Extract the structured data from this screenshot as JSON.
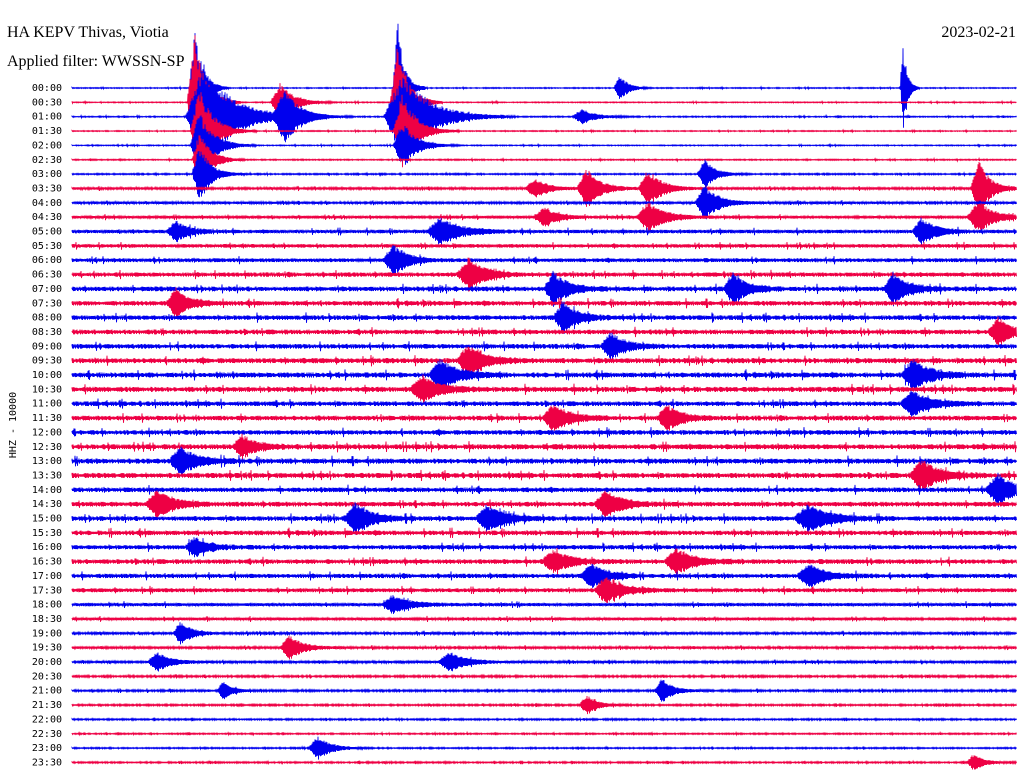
{
  "station_title": "HA KEPV Thivas, Viotia",
  "filter_label": "Applied filter: WWSSN-SP",
  "date": "2023-02-21",
  "channel_label": "HHZ - 10000",
  "colors": {
    "blue": "#0000ee",
    "red": "#ee0044",
    "text": "#000000"
  },
  "chart_data": {
    "type": "line",
    "rows": [
      "00:00",
      "00:30",
      "01:00",
      "01:30",
      "02:00",
      "02:30",
      "03:00",
      "03:30",
      "04:00",
      "04:30",
      "05:00",
      "05:30",
      "06:00",
      "06:30",
      "07:00",
      "07:30",
      "08:00",
      "08:30",
      "09:00",
      "09:30",
      "10:00",
      "10:30",
      "11:00",
      "11:30",
      "12:00",
      "12:30",
      "13:00",
      "13:30",
      "14:00",
      "14:30",
      "15:00",
      "15:30",
      "16:00",
      "16:30",
      "17:00",
      "17:30",
      "18:00",
      "18:30",
      "19:00",
      "19:30",
      "20:00",
      "20:30",
      "21:00",
      "21:30",
      "22:00",
      "22:30",
      "23:00",
      "23:30"
    ],
    "row_noise": [
      0.5,
      0.5,
      0.6,
      0.5,
      0.5,
      0.6,
      0.7,
      1.2,
      1.2,
      1.4,
      1.8,
      1.8,
      2.0,
      2.2,
      2.4,
      2.4,
      2.4,
      2.4,
      2.4,
      2.6,
      2.6,
      2.6,
      2.4,
      2.4,
      2.4,
      2.6,
      2.6,
      2.6,
      2.4,
      2.4,
      2.4,
      2.4,
      2.2,
      2.4,
      2.2,
      2.0,
      1.6,
      1.4,
      1.2,
      1.2,
      1.2,
      1.0,
      1.0,
      0.9,
      0.8,
      0.7,
      0.7,
      0.8
    ],
    "events": [
      {
        "row": 0,
        "x": 0.58,
        "amp": 14,
        "w": 0.006
      },
      {
        "row": 0,
        "x": 0.88,
        "amp": 50,
        "w": 0.003
      },
      {
        "row": 0,
        "x": 0.13,
        "amp": 60,
        "w": 0.006
      },
      {
        "row": 0,
        "x": 0.345,
        "amp": 70,
        "w": 0.005
      },
      {
        "row": 1,
        "x": 0.13,
        "amp": 70,
        "w": 0.008
      },
      {
        "row": 1,
        "x": 0.345,
        "amp": 60,
        "w": 0.008
      },
      {
        "row": 1,
        "x": 0.22,
        "amp": 20,
        "w": 0.01
      },
      {
        "row": 2,
        "x": 0.14,
        "amp": 55,
        "w": 0.02
      },
      {
        "row": 2,
        "x": 0.35,
        "amp": 45,
        "w": 0.02
      },
      {
        "row": 2,
        "x": 0.225,
        "amp": 25,
        "w": 0.012
      },
      {
        "row": 2,
        "x": 0.54,
        "amp": 8,
        "w": 0.01
      },
      {
        "row": 3,
        "x": 0.135,
        "amp": 45,
        "w": 0.01
      },
      {
        "row": 3,
        "x": 0.35,
        "amp": 40,
        "w": 0.01
      },
      {
        "row": 4,
        "x": 0.135,
        "amp": 35,
        "w": 0.01
      },
      {
        "row": 4,
        "x": 0.35,
        "amp": 25,
        "w": 0.01
      },
      {
        "row": 5,
        "x": 0.135,
        "amp": 30,
        "w": 0.008
      },
      {
        "row": 6,
        "x": 0.135,
        "amp": 30,
        "w": 0.008
      },
      {
        "row": 6,
        "x": 0.67,
        "amp": 15,
        "w": 0.008
      },
      {
        "row": 7,
        "x": 0.545,
        "amp": 20,
        "w": 0.01
      },
      {
        "row": 7,
        "x": 0.61,
        "amp": 20,
        "w": 0.01
      },
      {
        "row": 7,
        "x": 0.49,
        "amp": 10,
        "w": 0.01
      },
      {
        "row": 7,
        "x": 0.96,
        "amp": 30,
        "w": 0.008
      },
      {
        "row": 8,
        "x": 0.67,
        "amp": 18,
        "w": 0.01
      },
      {
        "row": 9,
        "x": 0.61,
        "amp": 16,
        "w": 0.012
      },
      {
        "row": 9,
        "x": 0.5,
        "amp": 10,
        "w": 0.01
      },
      {
        "row": 9,
        "x": 0.96,
        "amp": 16,
        "w": 0.012
      },
      {
        "row": 10,
        "x": 0.39,
        "amp": 14,
        "w": 0.015
      },
      {
        "row": 10,
        "x": 0.9,
        "amp": 14,
        "w": 0.01
      },
      {
        "row": 10,
        "x": 0.11,
        "amp": 10,
        "w": 0.01
      },
      {
        "row": 12,
        "x": 0.34,
        "amp": 16,
        "w": 0.01
      },
      {
        "row": 13,
        "x": 0.42,
        "amp": 16,
        "w": 0.012
      },
      {
        "row": 14,
        "x": 0.51,
        "amp": 18,
        "w": 0.01
      },
      {
        "row": 14,
        "x": 0.7,
        "amp": 16,
        "w": 0.01
      },
      {
        "row": 14,
        "x": 0.87,
        "amp": 16,
        "w": 0.01
      },
      {
        "row": 15,
        "x": 0.11,
        "amp": 14,
        "w": 0.01
      },
      {
        "row": 16,
        "x": 0.52,
        "amp": 16,
        "w": 0.01
      },
      {
        "row": 17,
        "x": 0.98,
        "amp": 14,
        "w": 0.01
      },
      {
        "row": 18,
        "x": 0.57,
        "amp": 14,
        "w": 0.01
      },
      {
        "row": 19,
        "x": 0.42,
        "amp": 16,
        "w": 0.012
      },
      {
        "row": 20,
        "x": 0.39,
        "amp": 16,
        "w": 0.012
      },
      {
        "row": 20,
        "x": 0.89,
        "amp": 16,
        "w": 0.012
      },
      {
        "row": 21,
        "x": 0.37,
        "amp": 14,
        "w": 0.012
      },
      {
        "row": 22,
        "x": 0.89,
        "amp": 14,
        "w": 0.012
      },
      {
        "row": 23,
        "x": 0.51,
        "amp": 14,
        "w": 0.012
      },
      {
        "row": 23,
        "x": 0.63,
        "amp": 14,
        "w": 0.01
      },
      {
        "row": 25,
        "x": 0.18,
        "amp": 12,
        "w": 0.01
      },
      {
        "row": 26,
        "x": 0.115,
        "amp": 14,
        "w": 0.012
      },
      {
        "row": 27,
        "x": 0.9,
        "amp": 16,
        "w": 0.012
      },
      {
        "row": 28,
        "x": 0.98,
        "amp": 16,
        "w": 0.012
      },
      {
        "row": 29,
        "x": 0.09,
        "amp": 14,
        "w": 0.012
      },
      {
        "row": 29,
        "x": 0.565,
        "amp": 14,
        "w": 0.012
      },
      {
        "row": 30,
        "x": 0.3,
        "amp": 16,
        "w": 0.012
      },
      {
        "row": 30,
        "x": 0.44,
        "amp": 14,
        "w": 0.012
      },
      {
        "row": 30,
        "x": 0.78,
        "amp": 14,
        "w": 0.015
      },
      {
        "row": 32,
        "x": 0.13,
        "amp": 10,
        "w": 0.01
      },
      {
        "row": 33,
        "x": 0.51,
        "amp": 12,
        "w": 0.012
      },
      {
        "row": 33,
        "x": 0.64,
        "amp": 14,
        "w": 0.012
      },
      {
        "row": 34,
        "x": 0.55,
        "amp": 12,
        "w": 0.012
      },
      {
        "row": 34,
        "x": 0.78,
        "amp": 12,
        "w": 0.012
      },
      {
        "row": 35,
        "x": 0.565,
        "amp": 14,
        "w": 0.012
      },
      {
        "row": 36,
        "x": 0.34,
        "amp": 10,
        "w": 0.012
      },
      {
        "row": 38,
        "x": 0.115,
        "amp": 12,
        "w": 0.008
      },
      {
        "row": 39,
        "x": 0.23,
        "amp": 12,
        "w": 0.01
      },
      {
        "row": 40,
        "x": 0.09,
        "amp": 10,
        "w": 0.01
      },
      {
        "row": 40,
        "x": 0.4,
        "amp": 10,
        "w": 0.012
      },
      {
        "row": 42,
        "x": 0.625,
        "amp": 12,
        "w": 0.008
      },
      {
        "row": 42,
        "x": 0.16,
        "amp": 10,
        "w": 0.006
      },
      {
        "row": 43,
        "x": 0.545,
        "amp": 10,
        "w": 0.008
      },
      {
        "row": 46,
        "x": 0.26,
        "amp": 12,
        "w": 0.01
      },
      {
        "row": 47,
        "x": 0.955,
        "amp": 8,
        "w": 0.008
      }
    ]
  }
}
